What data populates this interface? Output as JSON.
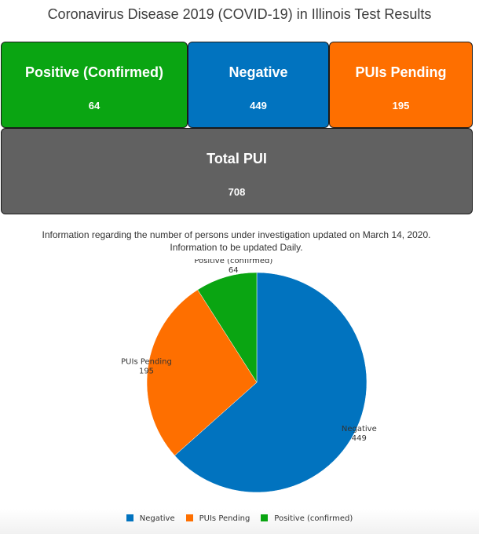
{
  "title": "Coronavirus Disease 2019 (COVID-19) in Illinois Test Results",
  "cards": {
    "positive": {
      "label": "Positive (Confirmed)",
      "value": "64",
      "color": "#0aa512"
    },
    "negative": {
      "label": "Negative",
      "value": "449",
      "color": "#0173bf"
    },
    "pending": {
      "label": "PUIs Pending",
      "value": "195",
      "color": "#fe6f00"
    },
    "total": {
      "label": "Total PUI",
      "value": "708",
      "color": "#616161"
    }
  },
  "info": {
    "line1": "Information regarding the number of persons under investigation updated on March 14, 2020.",
    "line2": "Information to be updated Daily."
  },
  "chart_data": {
    "type": "pie",
    "labels": [
      "Negative",
      "PUIs Pending",
      "Positive (confirmed)"
    ],
    "values": [
      449,
      195,
      64
    ],
    "colors": [
      "#0173bf",
      "#fe6f00",
      "#0aa512"
    ],
    "start_angle_deg": 0,
    "direction": "clockwise",
    "legend": "bottom"
  },
  "legend": [
    {
      "label": "Negative",
      "color": "#0173bf"
    },
    {
      "label": "PUIs Pending",
      "color": "#fe6f00"
    },
    {
      "label": "Positive (confirmed)",
      "color": "#0aa512"
    }
  ]
}
